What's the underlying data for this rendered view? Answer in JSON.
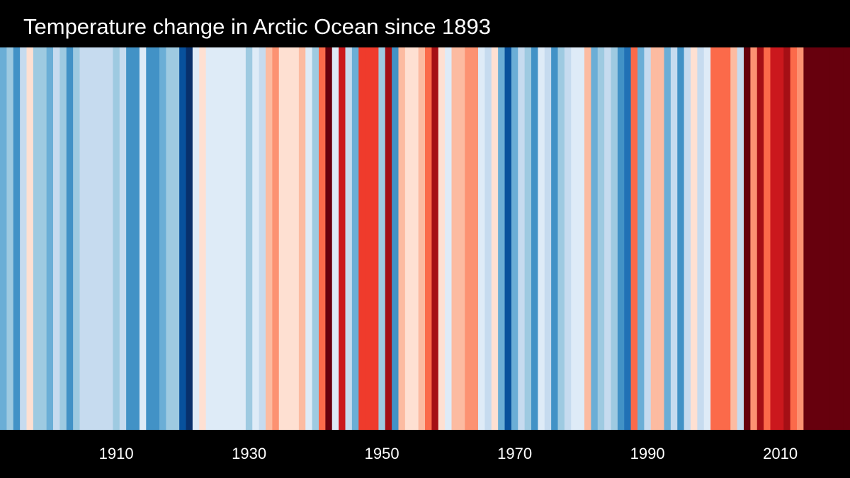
{
  "chart_data": {
    "type": "heatmap",
    "title": "Temperature change in Arctic Ocean since 1893",
    "x_start": 1893,
    "x_end": 2020,
    "xtick_labels": [
      "1910",
      "1930",
      "1950",
      "1970",
      "1990",
      "2010"
    ],
    "color_scale": [
      "#08306b",
      "#08519c",
      "#2171b5",
      "#4292c6",
      "#6baed6",
      "#9ecae1",
      "#c6dbef",
      "#deebf7",
      "#fee0d2",
      "#fcbba1",
      "#fc9272",
      "#fb6a4a",
      "#ef3b2c",
      "#cb181d",
      "#a50f15",
      "#67000d"
    ],
    "anomaly_levels": [
      -7.5,
      -6.5,
      -5.5,
      -4.5,
      -3.5,
      -2.5,
      -1.5,
      -0.5,
      0.5,
      1.5,
      2.5,
      3.5,
      4.5,
      5.5,
      6.5,
      7.5
    ],
    "years": [
      1893,
      1894,
      1895,
      1896,
      1897,
      1898,
      1899,
      1900,
      1901,
      1902,
      1903,
      1904,
      1905,
      1906,
      1907,
      1908,
      1909,
      1910,
      1911,
      1912,
      1913,
      1914,
      1915,
      1916,
      1917,
      1918,
      1919,
      1920,
      1921,
      1922,
      1923,
      1924,
      1925,
      1926,
      1927,
      1928,
      1929,
      1930,
      1931,
      1932,
      1933,
      1934,
      1935,
      1936,
      1937,
      1938,
      1939,
      1940,
      1941,
      1942,
      1943,
      1944,
      1945,
      1946,
      1947,
      1948,
      1949,
      1950,
      1951,
      1952,
      1953,
      1954,
      1955,
      1956,
      1957,
      1958,
      1959,
      1960,
      1961,
      1962,
      1963,
      1964,
      1965,
      1966,
      1967,
      1968,
      1969,
      1970,
      1971,
      1972,
      1973,
      1974,
      1975,
      1976,
      1977,
      1978,
      1979,
      1980,
      1981,
      1982,
      1983,
      1984,
      1985,
      1986,
      1987,
      1988,
      1989,
      1990,
      1991,
      1992,
      1993,
      1994,
      1995,
      1996,
      1997,
      1998,
      1999,
      2000,
      2001,
      2002,
      2003,
      2004,
      2005,
      2006,
      2007,
      2008,
      2009,
      2010,
      2011,
      2012,
      2013,
      2014,
      2015,
      2016,
      2017,
      2018,
      2019,
      2020
    ],
    "values": [
      -3.5,
      -2.5,
      -4.5,
      -1.5,
      0.5,
      -2.5,
      -2.5,
      -3.5,
      -1.5,
      -2.5,
      -4.5,
      -2.5,
      -1.5,
      -1.5,
      -1.5,
      -1.5,
      -1.5,
      -2.5,
      -1.5,
      -4.5,
      -4.5,
      -0.5,
      -4.5,
      -4.5,
      -3.5,
      -2.5,
      -2.5,
      -6.5,
      -7.5,
      -0.5,
      0.5,
      -0.5,
      -0.5,
      -0.5,
      -0.5,
      -0.5,
      -0.5,
      -2.5,
      -0.5,
      -1.5,
      1.5,
      2.5,
      0.5,
      0.5,
      0.5,
      1.5,
      -0.5,
      -2.5,
      3.5,
      7.5,
      -0.5,
      5.5,
      -1.5,
      -3.5,
      4.5,
      4.5,
      4.5,
      -2.5,
      6.5,
      -4.5,
      1.5,
      0.5,
      0.5,
      1.5,
      3.5,
      6.5,
      0.5,
      -0.5,
      1.5,
      1.5,
      2.5,
      2.5,
      -0.5,
      -1.5,
      0.5,
      -3.5,
      -6.5,
      -3.5,
      -1.5,
      -2.5,
      -4.5,
      -0.5,
      -1.5,
      -4.5,
      -2.5,
      -1.5,
      -0.5,
      -0.5,
      1.5,
      -3.5,
      -2.5,
      -1.5,
      -2.5,
      -4.5,
      -5.5,
      3.5,
      -3.5,
      -1.5,
      1.5,
      1.5,
      -3.5,
      -1.5,
      -4.5,
      -1.5,
      0.5,
      -1.5,
      -0.5,
      3.5,
      3.5,
      3.5,
      1.5,
      -1.5,
      7.5,
      2.5,
      6.5,
      3.5,
      5.5,
      5.5,
      6.5,
      3.5,
      2.5,
      7.5,
      7.5,
      7.5,
      7.5,
      7.5,
      7.5,
      7.5
    ]
  }
}
